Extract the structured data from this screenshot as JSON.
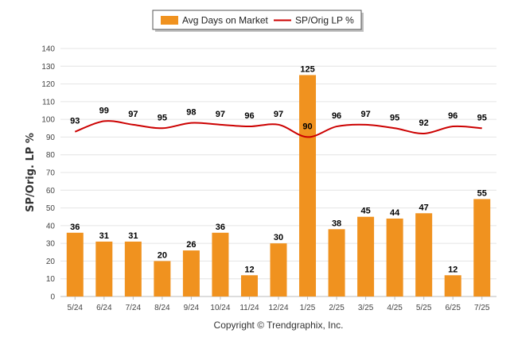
{
  "chart_data": {
    "type": "bar",
    "title": "",
    "xlabel": "",
    "ylabel": "SP/Orig. LP %",
    "ylim": [
      0,
      140
    ],
    "yticks": [
      0,
      10,
      20,
      30,
      40,
      50,
      60,
      70,
      80,
      90,
      100,
      110,
      120,
      130,
      140
    ],
    "grid": true,
    "legend_position": "top-center",
    "categories": [
      "5/24",
      "6/24",
      "7/24",
      "8/24",
      "9/24",
      "10/24",
      "11/24",
      "12/24",
      "1/25",
      "2/25",
      "3/25",
      "4/25",
      "5/25",
      "6/25",
      "7/25"
    ],
    "series": [
      {
        "name": "Avg Days on Market",
        "type": "bar",
        "color": "#f0921f",
        "values": [
          36,
          31,
          31,
          20,
          26,
          36,
          12,
          30,
          125,
          38,
          45,
          44,
          47,
          12,
          55
        ]
      },
      {
        "name": "SP/Orig LP %",
        "type": "line",
        "color": "#cc0000",
        "values": [
          93,
          99,
          97,
          95,
          98,
          97,
          96,
          97,
          90,
          96,
          97,
          95,
          92,
          96,
          95
        ]
      }
    ],
    "footer": "Copyright © Trendgraphix, Inc."
  }
}
